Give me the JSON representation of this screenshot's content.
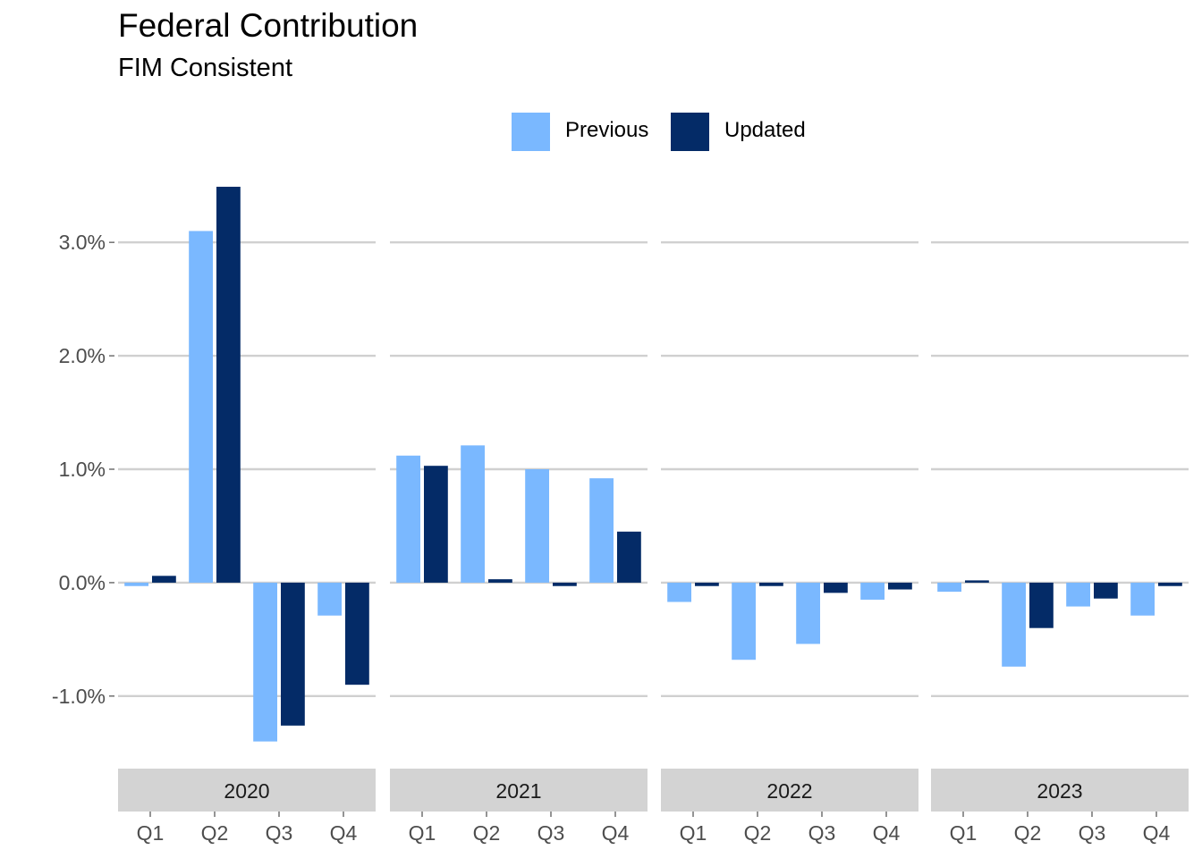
{
  "chart_data": {
    "type": "bar",
    "title": "Federal Contribution",
    "subtitle": "FIM Consistent",
    "xlabel": "",
    "ylabel": "",
    "ylim": [
      -1.6,
      3.6
    ],
    "yticks": [
      -1.0,
      0.0,
      1.0,
      2.0,
      3.0
    ],
    "ytick_labels": [
      "-1.0%",
      "0.0%",
      "1.0%",
      "2.0%",
      "3.0%"
    ],
    "grid": "horizontal major",
    "legend_position": "top",
    "facets": [
      "2020",
      "2021",
      "2022",
      "2023"
    ],
    "categories": [
      "Q1",
      "Q2",
      "Q3",
      "Q4"
    ],
    "series": [
      {
        "name": "Previous",
        "color": "#7ab8ff",
        "values": [
          [
            -0.03,
            3.1,
            -1.4,
            -0.29
          ],
          [
            1.12,
            1.21,
            1.0,
            0.92
          ],
          [
            -0.17,
            -0.68,
            -0.54,
            -0.15
          ],
          [
            -0.08,
            -0.74,
            -0.21,
            -0.29
          ]
        ]
      },
      {
        "name": "Updated",
        "color": "#042b67",
        "values": [
          [
            0.06,
            3.49,
            -1.26,
            -0.9
          ],
          [
            1.03,
            0.03,
            -0.03,
            0.45
          ],
          [
            -0.03,
            -0.03,
            -0.09,
            -0.06
          ],
          [
            0.02,
            -0.4,
            -0.14,
            -0.03
          ]
        ]
      }
    ]
  }
}
